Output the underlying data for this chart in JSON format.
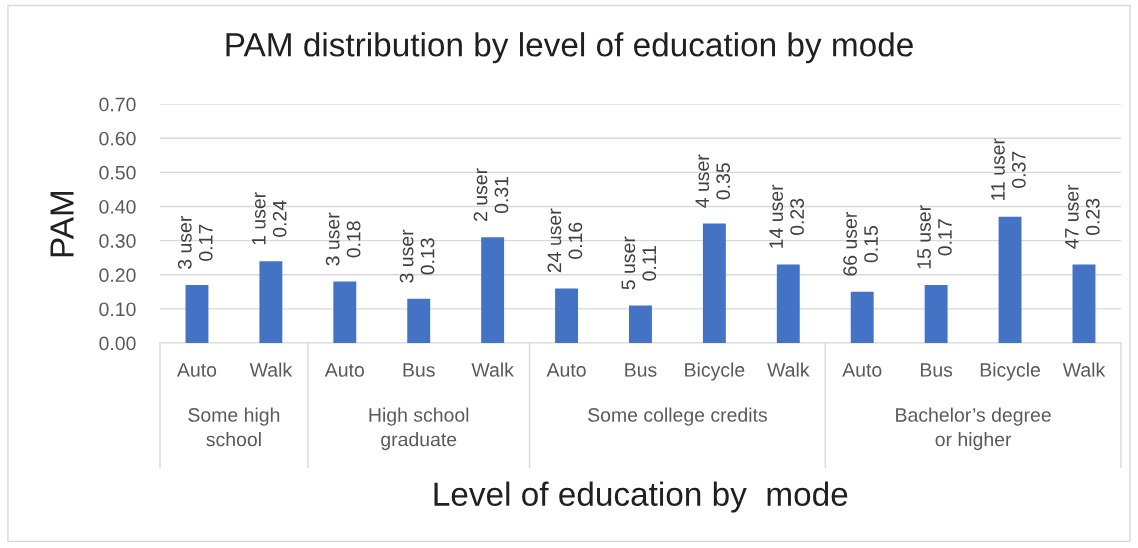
{
  "chart_data": {
    "type": "bar",
    "title": "PAM distribution by level of education by mode",
    "xlabel": "Level of education by  mode",
    "ylabel": "PAM",
    "categories": [
      "Auto",
      "Walk",
      "Auto",
      "Bus",
      "Walk",
      "Auto",
      "Bus",
      "Bicycle",
      "Walk",
      "Auto",
      "Bus",
      "Bicycle",
      "Walk"
    ],
    "values": [
      0.17,
      0.24,
      0.18,
      0.13,
      0.31,
      0.16,
      0.11,
      0.35,
      0.23,
      0.15,
      0.17,
      0.37,
      0.23
    ],
    "color": "#4472c4",
    "value_labels": [
      "3 user\n0.17",
      "1 user\n0.24",
      "3 user\n0.18",
      "3 user\n0.13",
      "2 user\n0.31",
      "24 user\n0.16",
      "5 user\n0.11",
      "4 user\n0.35",
      "14 user\n0.23",
      "66 user\n0.15",
      "15 user\n0.17",
      "11 user\n0.37",
      "47 user\n0.23"
    ],
    "annotations": [
      "Some high\nschool",
      "High school\ngraduate",
      "Some college credits",
      "Bachelor’s degree\nor higher"
    ],
    "ylim": [
      0,
      0.7
    ],
    "yticks": [
      {
        "value": 0,
        "label": "0.00"
      },
      {
        "value": 0.1,
        "label": "0.10"
      },
      {
        "value": 0.2,
        "label": "0.20"
      },
      {
        "value": 0.3,
        "label": "0.30"
      },
      {
        "value": 0.4,
        "label": "0.40"
      },
      {
        "value": 0.5,
        "label": "0.50"
      },
      {
        "value": 0.6,
        "label": "0.60"
      },
      {
        "value": 0.7,
        "label": "0.70"
      }
    ],
    "grid": "y"
  }
}
